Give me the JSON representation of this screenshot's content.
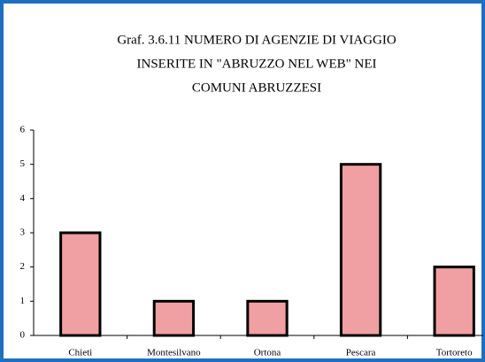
{
  "chart_data": {
    "type": "bar",
    "title": [
      "Graf. 3.6.11 NUMERO DI AGENZIE DI VIAGGIO",
      "INSERITE IN \"ABRUZZO NEL WEB\" NEI",
      "COMUNI ABRUZZESI"
    ],
    "categories": [
      "Chieti",
      "Montesilvano",
      "Ortona",
      "Pescara",
      "Tortoreto"
    ],
    "values": [
      3,
      1,
      1,
      5,
      2
    ],
    "color": "#f0a0a2",
    "ylim": [
      0,
      6
    ],
    "yticks": [
      0,
      1,
      2,
      3,
      4,
      5,
      6
    ],
    "grid": false
  }
}
